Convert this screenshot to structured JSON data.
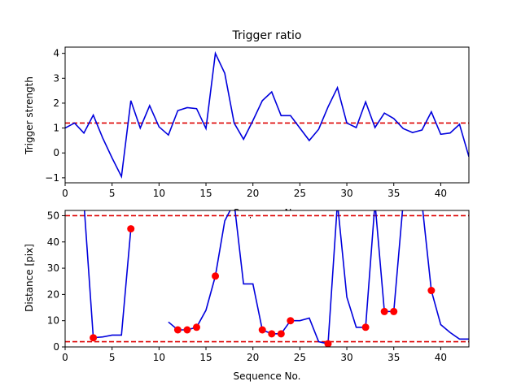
{
  "chart_data": [
    {
      "type": "line",
      "title": "Trigger ratio",
      "xlabel": "Sequence No.",
      "ylabel": "Trigger strength",
      "xlim": [
        0,
        43
      ],
      "ylim": [
        -1.2,
        4.25
      ],
      "xticks": [
        0,
        5,
        10,
        15,
        20,
        25,
        30,
        35,
        40
      ],
      "xtick_labels": [
        "0",
        "5",
        "10",
        "15",
        "20",
        "25",
        "30",
        "35",
        "40"
      ],
      "yticks": [
        -1,
        0,
        1,
        2,
        3,
        4
      ],
      "ytick_labels": [
        "−1",
        "0",
        "1",
        "2",
        "3",
        "4"
      ],
      "grid": false,
      "colors": {
        "line": "#0000dd",
        "threshold": "#dd0000"
      },
      "thresholds": [
        1.2
      ],
      "series": [
        {
          "x": [
            0,
            1,
            2,
            3,
            4,
            5,
            6,
            7,
            8,
            9,
            10,
            11,
            12,
            13,
            14,
            15,
            16,
            17,
            18,
            19,
            20,
            21,
            22,
            23,
            24,
            25,
            26,
            27,
            28,
            29,
            30,
            31,
            32,
            33,
            34,
            35,
            36,
            37,
            38,
            39,
            40,
            41,
            42,
            43
          ],
          "values": [
            1.0,
            1.2,
            0.8,
            1.52,
            0.6,
            -0.2,
            -0.95,
            2.1,
            1.0,
            1.9,
            1.05,
            0.72,
            1.7,
            1.82,
            1.78,
            0.98,
            4.0,
            3.2,
            1.2,
            0.55,
            1.3,
            2.1,
            2.45,
            1.5,
            1.5,
            1.0,
            0.5,
            0.95,
            1.85,
            2.62,
            1.2,
            1.02,
            2.05,
            1.02,
            1.6,
            1.38,
            0.98,
            0.82,
            0.92,
            1.65,
            0.75,
            0.8,
            1.15,
            -0.15
          ]
        }
      ]
    },
    {
      "type": "line",
      "title": "",
      "xlabel": "Sequence No.",
      "ylabel": "Distance [pix]",
      "xlim": [
        0,
        43
      ],
      "ylim": [
        0,
        52
      ],
      "xticks": [
        0,
        5,
        10,
        15,
        20,
        25,
        30,
        35,
        40
      ],
      "xtick_labels": [
        "0",
        "5",
        "10",
        "15",
        "20",
        "25",
        "30",
        "35",
        "40"
      ],
      "yticks": [
        0,
        10,
        20,
        30,
        40,
        50
      ],
      "ytick_labels": [
        "0",
        "10",
        "20",
        "30",
        "40",
        "50"
      ],
      "grid": false,
      "colors": {
        "line": "#0000dd",
        "threshold": "#dd0000",
        "marker": "#ff0000"
      },
      "thresholds": [
        50,
        2
      ],
      "series": [
        {
          "x": [
            0,
            1,
            2,
            3,
            4,
            5,
            6,
            7,
            8,
            9,
            10,
            11,
            12,
            13,
            14,
            15,
            16,
            17,
            18,
            19,
            20,
            21,
            22,
            23,
            24,
            25,
            26,
            27,
            28,
            29,
            30,
            31,
            32,
            33,
            34,
            35,
            36,
            37,
            38,
            39,
            40,
            41,
            42,
            43
          ],
          "values": [
            null,
            null,
            55,
            3.5,
            3.8,
            4.5,
            4.5,
            45,
            null,
            null,
            null,
            9.5,
            6.5,
            6.5,
            7.5,
            14,
            27,
            48,
            55,
            24,
            24,
            6.5,
            5,
            5,
            10,
            10,
            11,
            2,
            1.2,
            55,
            19,
            7.5,
            7.5,
            55,
            13.5,
            13.5,
            55,
            null,
            55,
            21.5,
            8.5,
            5.5,
            3,
            3
          ]
        }
      ],
      "markers": {
        "x": [
          3,
          7,
          12,
          13,
          14,
          16,
          21,
          22,
          23,
          24,
          28,
          32,
          34,
          35,
          39
        ],
        "values": [
          3.5,
          45,
          6.5,
          6.5,
          7.5,
          27,
          6.5,
          5,
          5,
          10,
          1.2,
          7.5,
          13.5,
          13.5,
          21.5
        ]
      }
    }
  ]
}
